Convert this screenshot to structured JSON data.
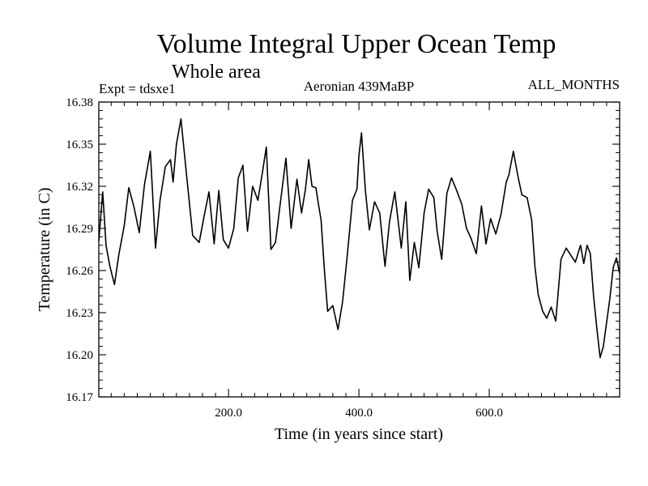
{
  "chart_data": {
    "type": "line",
    "title": "Volume Integral Upper Ocean Temp",
    "subtitle": "Whole area",
    "experiment": "Expt = tdsxe1",
    "period": "Aeronian 439MaBP",
    "season": "ALL_MONTHS",
    "xlabel": "Time (in years since start)",
    "ylabel": "Temperature (in C)",
    "xlim": [
      1,
      800
    ],
    "ylim": [
      16.17,
      16.38
    ],
    "xticks": [
      200,
      400,
      600
    ],
    "xtick_labels": [
      "200.0",
      "400.0",
      "600.0"
    ],
    "yticks": [
      16.17,
      16.2,
      16.23,
      16.26,
      16.29,
      16.32,
      16.35,
      16.38
    ],
    "ytick_labels": [
      "16.17",
      "16.20",
      "16.23",
      "16.26",
      "16.29",
      "16.32",
      "16.35",
      "16.38"
    ],
    "grid": false,
    "series": [
      {
        "name": "Volume integral upper ocean temperature",
        "color": "#000000",
        "x": [
          1,
          7,
          12,
          18,
          25,
          32,
          40,
          47,
          55,
          63,
          71,
          80,
          88,
          95,
          103,
          111,
          115,
          120,
          127,
          135,
          145,
          155,
          163,
          170,
          178,
          185,
          192,
          200,
          208,
          215,
          222,
          229,
          237,
          245,
          252,
          258,
          265,
          272,
          280,
          288,
          296,
          305,
          312,
          318,
          323,
          328,
          334,
          338,
          342,
          347,
          352,
          360,
          368,
          375,
          382,
          390,
          397,
          400,
          404,
          410,
          416,
          424,
          432,
          440,
          447,
          455,
          465,
          472,
          478,
          485,
          492,
          500,
          507,
          515,
          520,
          527,
          535,
          542,
          550,
          558,
          565,
          572,
          580,
          588,
          595,
          602,
          610,
          618,
          626,
          630,
          637,
          644,
          650,
          658,
          665,
          670,
          675,
          682,
          688,
          695,
          702,
          710,
          718,
          725,
          732,
          740,
          745,
          750,
          755,
          760,
          765,
          770,
          775,
          780,
          785,
          790,
          795,
          800
        ],
        "values": [
          16.281,
          16.316,
          16.278,
          16.263,
          16.25,
          16.272,
          16.292,
          16.319,
          16.305,
          16.287,
          16.321,
          16.345,
          16.276,
          16.31,
          16.334,
          16.339,
          16.323,
          16.35,
          16.368,
          16.331,
          16.285,
          16.28,
          16.3,
          16.316,
          16.279,
          16.317,
          16.282,
          16.276,
          16.29,
          16.326,
          16.335,
          16.288,
          16.32,
          16.31,
          16.33,
          16.348,
          16.275,
          16.28,
          16.31,
          16.34,
          16.29,
          16.325,
          16.301,
          16.318,
          16.339,
          16.32,
          16.319,
          16.307,
          16.296,
          16.261,
          16.231,
          16.235,
          16.218,
          16.238,
          16.27,
          16.31,
          16.318,
          16.342,
          16.358,
          16.317,
          16.289,
          16.309,
          16.301,
          16.263,
          16.295,
          16.316,
          16.276,
          16.309,
          16.253,
          16.28,
          16.262,
          16.301,
          16.318,
          16.312,
          16.288,
          16.268,
          16.315,
          16.326,
          16.317,
          16.307,
          16.29,
          16.283,
          16.272,
          16.306,
          16.279,
          16.297,
          16.286,
          16.3,
          16.323,
          16.328,
          16.345,
          16.327,
          16.314,
          16.312,
          16.296,
          16.263,
          16.243,
          16.231,
          16.226,
          16.234,
          16.224,
          16.268,
          16.276,
          16.271,
          16.266,
          16.278,
          16.265,
          16.278,
          16.272,
          16.242,
          16.219,
          16.198,
          16.206,
          16.223,
          16.24,
          16.262,
          16.269,
          16.258
        ]
      }
    ]
  }
}
